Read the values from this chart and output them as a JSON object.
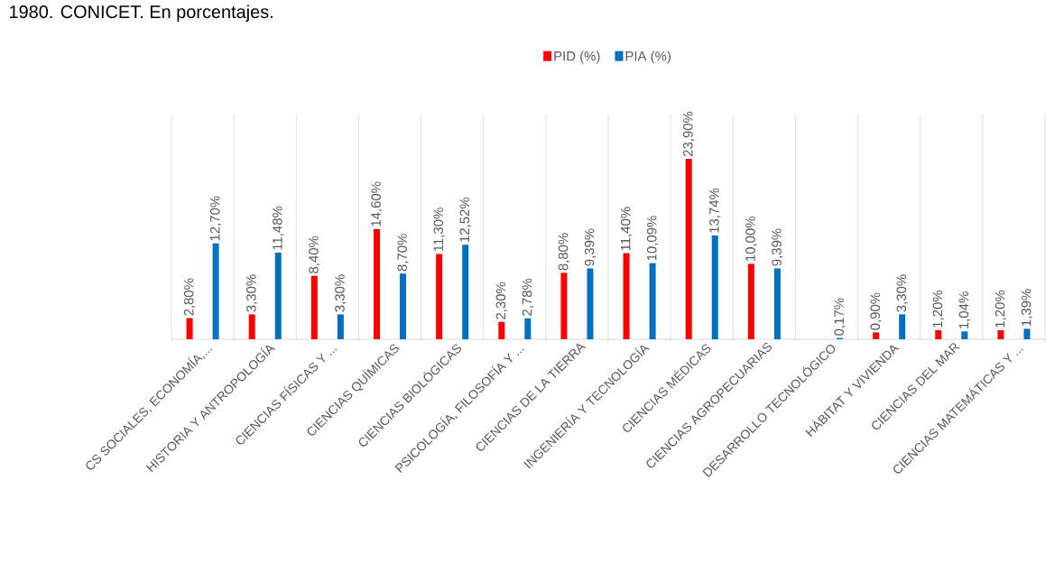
{
  "chart_data": {
    "type": "bar",
    "title": "1980. CONICET. En porcentajes.",
    "categories": [
      "CS SOCIALES, ECONOMÍA,...",
      "HISTORIA Y ANTROPOLOGÍA",
      "CIENCIAS FÍSICAS Y ...",
      "CIENCIAS QUÍMICAS",
      "CIENCIAS BIOLÓGICAS",
      "PSICOLOGÍA, FILOSOFÍA Y ...",
      "CIENCIAS DE LA TIERRA",
      "INGENIERÍA Y TECNOLOGÍA",
      "CIENCIAS MÉDICAS",
      "CIENCIAS AGROPECUARIAS",
      "DESARROLLO TECNOLÓGICO",
      "HÁBITAT Y VIVIENDA",
      "CIENCIAS DEL MAR",
      "CIENCIAS MATEMÁTICAS Y ..."
    ],
    "series": [
      {
        "name": "PID (%)",
        "color": "#ff0000",
        "values": [
          2.8,
          3.3,
          8.4,
          14.6,
          11.3,
          2.3,
          8.8,
          11.4,
          23.9,
          10.0,
          null,
          0.9,
          1.2,
          1.2
        ],
        "value_labels": [
          "2,80%",
          "3,30%",
          "8,40%",
          "14,60%",
          "11,30%",
          "2,30%",
          "8,80%",
          "11,40%",
          "23,90%",
          "10,00%",
          null,
          "0,90%",
          "1,20%",
          "1,20%"
        ]
      },
      {
        "name": "PIA (%)",
        "color": "#0070c0",
        "values": [
          12.7,
          11.48,
          3.3,
          8.7,
          12.52,
          2.78,
          9.39,
          10.09,
          13.74,
          9.39,
          0.17,
          3.3,
          1.04,
          1.39
        ],
        "value_labels": [
          "12,70%",
          "11,48%",
          "3,30%",
          "8,70%",
          "12,52%",
          "2,78%",
          "9,39%",
          "10,09%",
          "13,74%",
          "9,39%",
          "0,17%",
          "3,30%",
          "1,04%",
          "1,39%"
        ]
      }
    ],
    "grid": "x",
    "legend": "top"
  }
}
